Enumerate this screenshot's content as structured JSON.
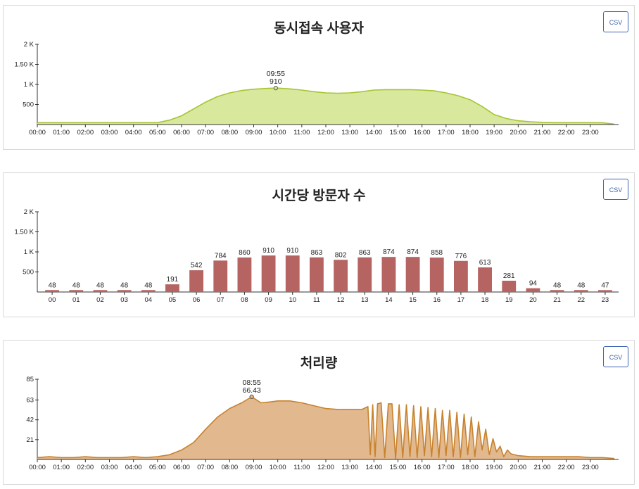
{
  "panels": [
    {
      "title": "동시접속 사용자",
      "csv_label": "CSV"
    },
    {
      "title": "시간당 방문자 수",
      "csv_label": "CSV"
    },
    {
      "title": "처리량",
      "csv_label": "CSV"
    }
  ],
  "chart_data": [
    {
      "type": "area",
      "title": "동시접속 사용자",
      "ylim": [
        0,
        2000
      ],
      "yticks": [
        {
          "v": 500,
          "label": "500"
        },
        {
          "v": 1000,
          "label": "1 K"
        },
        {
          "v": 1500,
          "label": "1.50 K"
        },
        {
          "v": 2000,
          "label": "2 K"
        }
      ],
      "xticks": [
        "00:00",
        "01:00",
        "02:00",
        "03:00",
        "04:00",
        "05:00",
        "06:00",
        "07:00",
        "08:00",
        "09:00",
        "10:00",
        "11:00",
        "12:00",
        "13:00",
        "14:00",
        "15:00",
        "16:00",
        "17:00",
        "18:00",
        "19:00",
        "20:00",
        "21:00",
        "22:00",
        "23:00"
      ],
      "x_hours": [
        0,
        0.5,
        1,
        1.5,
        2,
        2.5,
        3,
        3.5,
        4,
        4.5,
        5,
        5.5,
        6,
        6.5,
        7,
        7.5,
        8,
        8.5,
        9,
        9.5,
        9.9167,
        10.5,
        11,
        11.5,
        12,
        12.5,
        13,
        13.5,
        14,
        14.5,
        15,
        15.5,
        16,
        16.5,
        17,
        17.5,
        18,
        18.5,
        19,
        19.5,
        20,
        20.5,
        21,
        21.5,
        22,
        22.5,
        23,
        23.5,
        24
      ],
      "values": [
        48,
        48,
        48,
        48,
        48,
        48,
        48,
        48,
        48,
        48,
        48,
        110,
        220,
        390,
        560,
        700,
        790,
        850,
        880,
        900,
        910,
        890,
        860,
        820,
        790,
        780,
        790,
        820,
        860,
        870,
        870,
        870,
        860,
        840,
        790,
        720,
        620,
        450,
        250,
        150,
        95,
        70,
        55,
        48,
        48,
        48,
        48,
        45,
        10
      ],
      "fill": "#d8e89d",
      "stroke": "#a6c435",
      "annotation": {
        "x_hour": 9.9167,
        "value": 910,
        "time_label": "09:55",
        "value_label": "910"
      }
    },
    {
      "type": "bar",
      "title": "시간당 방문자 수",
      "ylim": [
        0,
        2000
      ],
      "yticks": [
        {
          "v": 500,
          "label": "500"
        },
        {
          "v": 1000,
          "label": "1 K"
        },
        {
          "v": 1500,
          "label": "1.50 K"
        },
        {
          "v": 2000,
          "label": "2 K"
        }
      ],
      "categories": [
        "00",
        "01",
        "02",
        "03",
        "04",
        "05",
        "06",
        "07",
        "08",
        "09",
        "10",
        "11",
        "12",
        "13",
        "14",
        "15",
        "16",
        "17",
        "18",
        "19",
        "20",
        "21",
        "22",
        "23"
      ],
      "values": [
        48,
        48,
        48,
        48,
        48,
        191,
        542,
        784,
        860,
        910,
        910,
        863,
        802,
        863,
        874,
        874,
        858,
        776,
        613,
        281,
        94,
        48,
        48,
        47
      ],
      "color": "#b56461"
    },
    {
      "type": "area",
      "title": "처리량",
      "ylim": [
        0,
        85
      ],
      "yticks": [
        {
          "v": 21,
          "label": "21"
        },
        {
          "v": 42,
          "label": "42"
        },
        {
          "v": 63,
          "label": "63"
        },
        {
          "v": 85,
          "label": "85"
        }
      ],
      "xticks": [
        "00:00",
        "01:00",
        "02:00",
        "03:00",
        "04:00",
        "05:00",
        "06:00",
        "07:00",
        "08:00",
        "09:00",
        "10:00",
        "11:00",
        "12:00",
        "13:00",
        "14:00",
        "15:00",
        "16:00",
        "17:00",
        "18:00",
        "19:00",
        "20:00",
        "21:00",
        "22:00",
        "23:00"
      ],
      "x_hours": [
        0,
        0.5,
        1,
        1.5,
        2,
        2.5,
        3,
        3.5,
        4,
        4.5,
        5,
        5.5,
        6,
        6.5,
        7,
        7.5,
        8,
        8.5,
        8.9167,
        9.3,
        9.7,
        10,
        10.5,
        11,
        11.5,
        12,
        12.5,
        13,
        13.5,
        13.75,
        13.85,
        13.95,
        14.05,
        14.15,
        14.3,
        14.45,
        14.6,
        14.75,
        14.9,
        15.05,
        15.2,
        15.35,
        15.5,
        15.65,
        15.8,
        15.95,
        16.1,
        16.25,
        16.4,
        16.55,
        16.7,
        16.85,
        17,
        17.15,
        17.3,
        17.45,
        17.6,
        17.75,
        17.9,
        18.05,
        18.2,
        18.35,
        18.5,
        18.65,
        18.8,
        18.95,
        19.1,
        19.25,
        19.4,
        19.55,
        19.7,
        20,
        20.5,
        21,
        21.5,
        22,
        22.5,
        23,
        23.5,
        24
      ],
      "values": [
        2,
        3,
        2,
        2,
        3,
        2,
        2,
        2,
        3,
        2,
        3,
        5,
        10,
        18,
        32,
        45,
        54,
        60,
        66.43,
        60,
        61,
        62,
        62,
        60,
        57,
        54,
        53,
        53,
        53,
        56,
        5,
        58,
        3,
        59,
        60,
        2,
        59,
        59,
        1,
        58,
        2,
        58,
        3,
        57,
        2,
        56,
        4,
        55,
        3,
        54,
        2,
        52,
        4,
        52,
        3,
        50,
        2,
        48,
        5,
        45,
        3,
        40,
        10,
        32,
        5,
        22,
        8,
        14,
        3,
        10,
        6,
        4,
        3,
        3,
        3,
        3,
        3,
        2,
        2,
        1
      ],
      "fill": "#e2b88e",
      "stroke": "#c7822d",
      "annotation": {
        "x_hour": 8.9167,
        "value": 66.43,
        "time_label": "08:55",
        "value_label": "66.43"
      }
    }
  ]
}
